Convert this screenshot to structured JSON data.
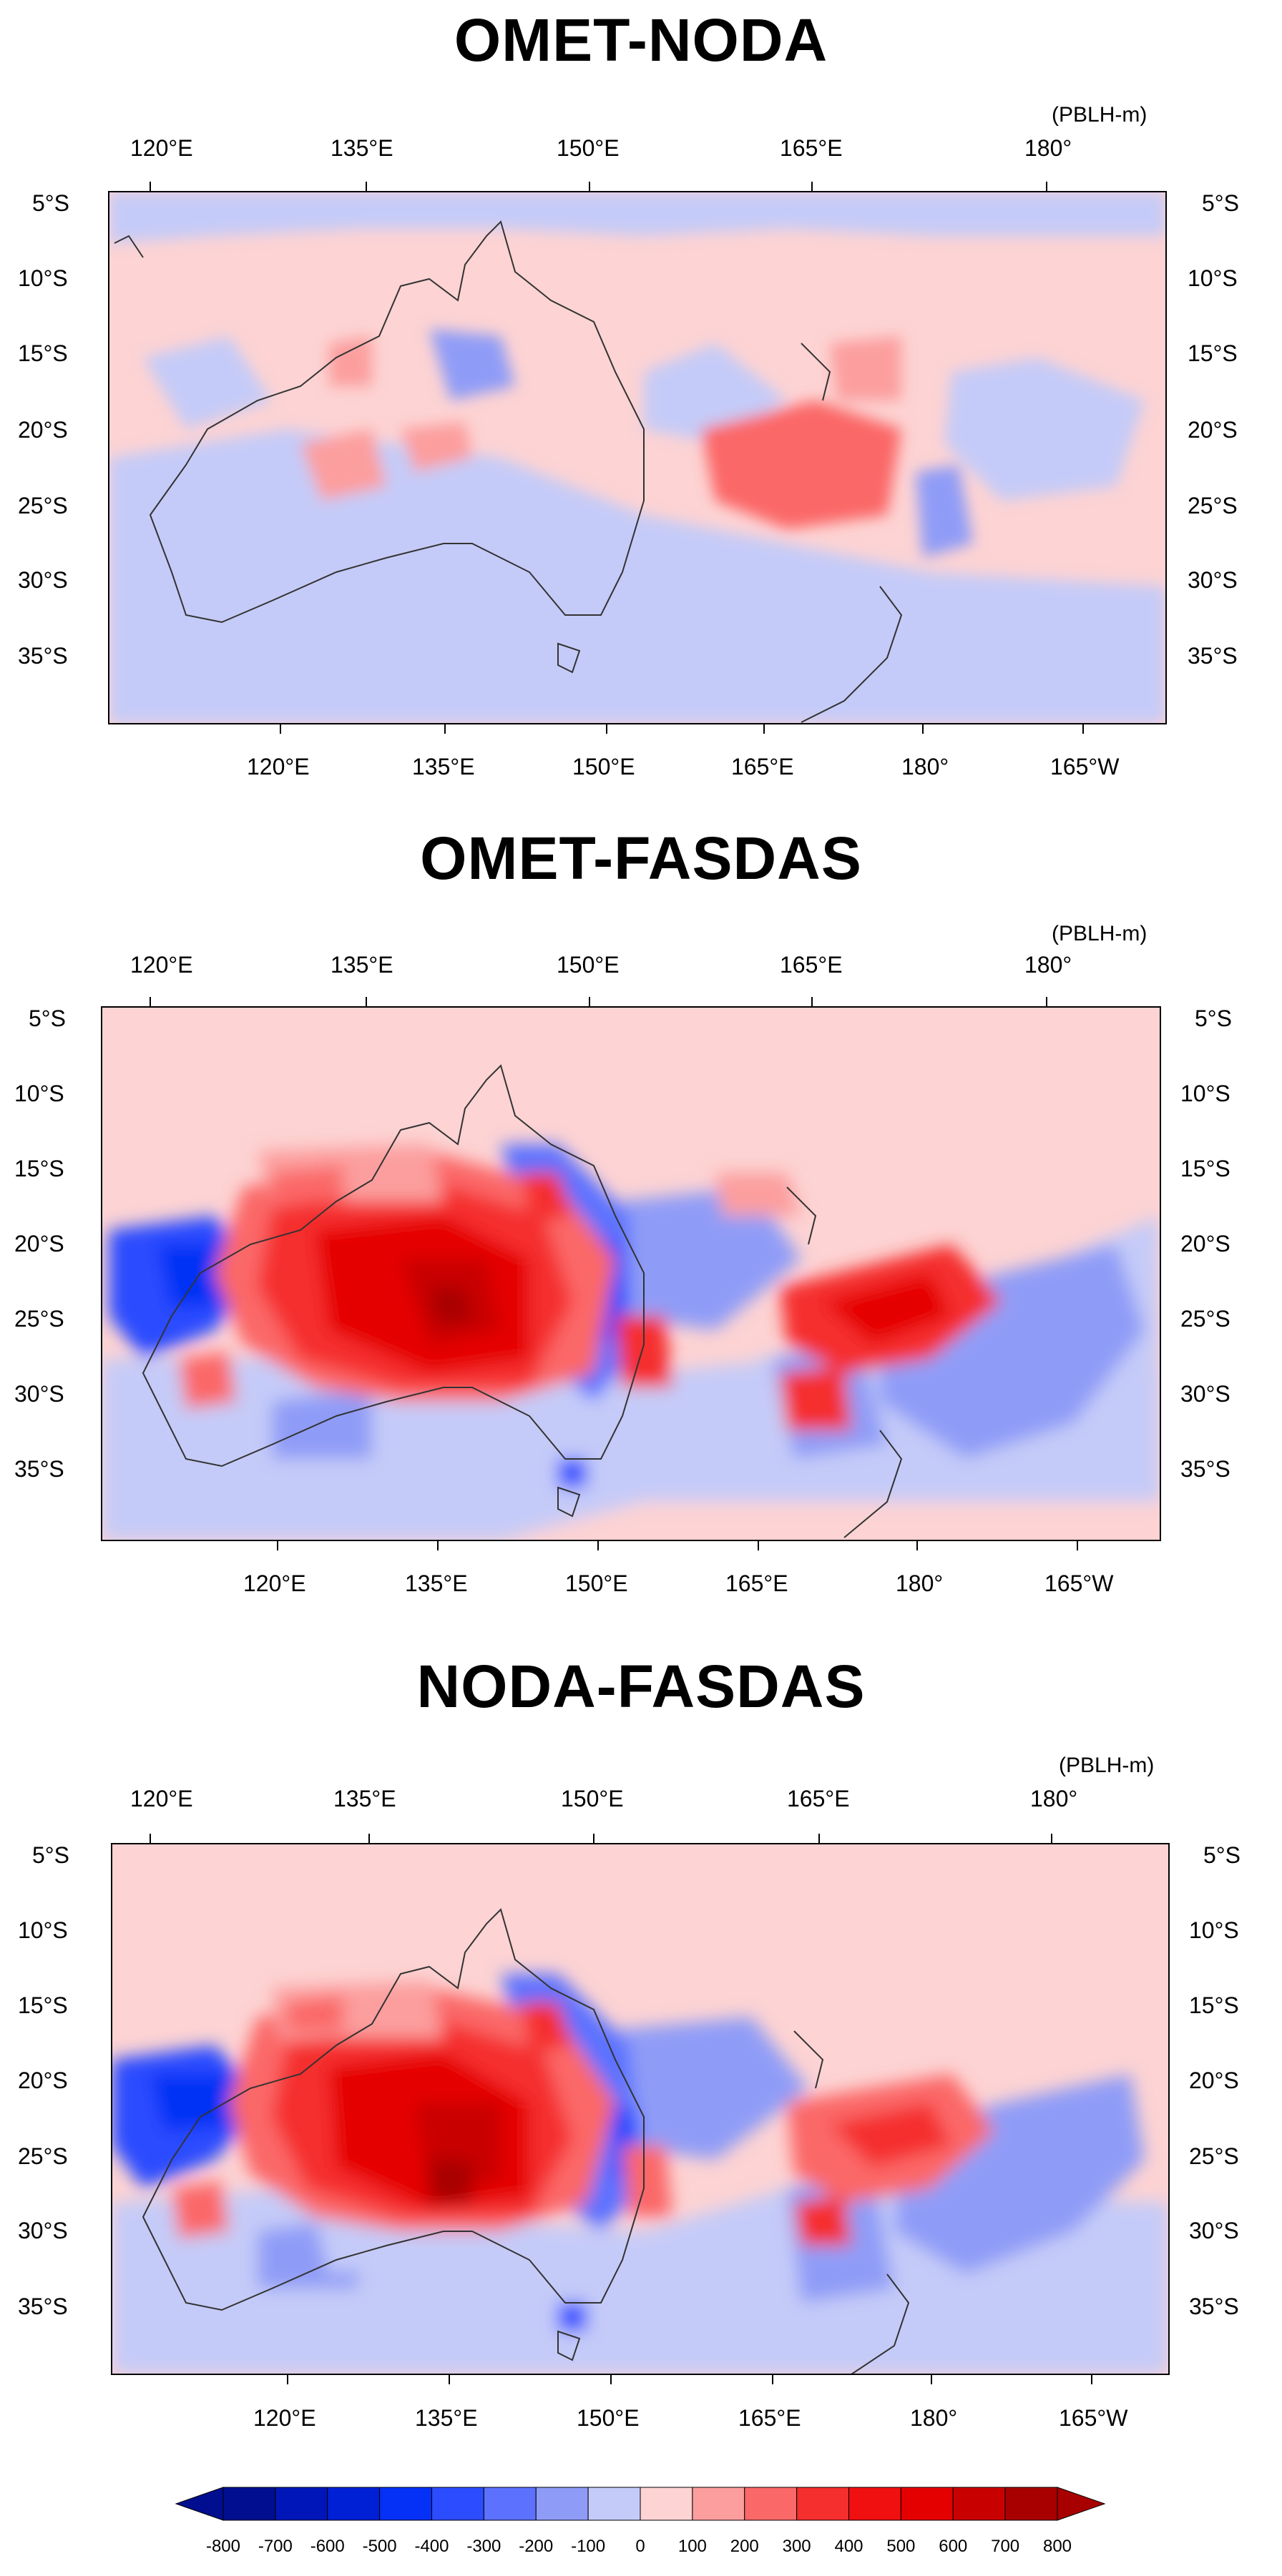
{
  "units": "(PBLH-m)",
  "panels": [
    {
      "title": "OMET-NODA",
      "top_lon_ticks": [
        "120°E",
        "135°E",
        "150°E",
        "165°E",
        "180°"
      ],
      "bottom_lon_ticks": [
        "120°E",
        "135°E",
        "150°E",
        "165°E",
        "180°",
        "165°W"
      ],
      "lat_ticks": [
        "5°S",
        "10°S",
        "15°S",
        "20°S",
        "25°S",
        "30°S",
        "35°S"
      ]
    },
    {
      "title": "OMET-FASDAS",
      "top_lon_ticks": [
        "120°E",
        "135°E",
        "150°E",
        "165°E",
        "180°"
      ],
      "bottom_lon_ticks": [
        "120°E",
        "135°E",
        "150°E",
        "165°E",
        "180°",
        "165°W"
      ],
      "lat_ticks": [
        "5°S",
        "10°S",
        "15°S",
        "20°S",
        "25°S",
        "30°S",
        "35°S"
      ]
    },
    {
      "title": "NODA-FASDAS",
      "top_lon_ticks": [
        "120°E",
        "135°E",
        "150°E",
        "165°E",
        "180°"
      ],
      "bottom_lon_ticks": [
        "120°E",
        "135°E",
        "150°E",
        "165°E",
        "180°",
        "165°W"
      ],
      "lat_ticks": [
        "5°S",
        "10°S",
        "15°S",
        "20°S",
        "25°S",
        "30°S",
        "35°S"
      ]
    }
  ],
  "colorbar": {
    "labels": [
      "-800",
      "-700",
      "-600",
      "-500",
      "-400",
      "-300",
      "-200",
      "-100",
      "0",
      "100",
      "200",
      "300",
      "400",
      "500",
      "600",
      "700",
      "800"
    ],
    "colors": [
      "#000e8f",
      "#0016b8",
      "#0020d6",
      "#0530f5",
      "#2c4cff",
      "#5c72ff",
      "#8f9cf7",
      "#c5cbf8",
      "#fdd3d3",
      "#fc9e9e",
      "#fb6868",
      "#f52e2e",
      "#f01010",
      "#e50000",
      "#c90000",
      "#a80000"
    ]
  }
}
